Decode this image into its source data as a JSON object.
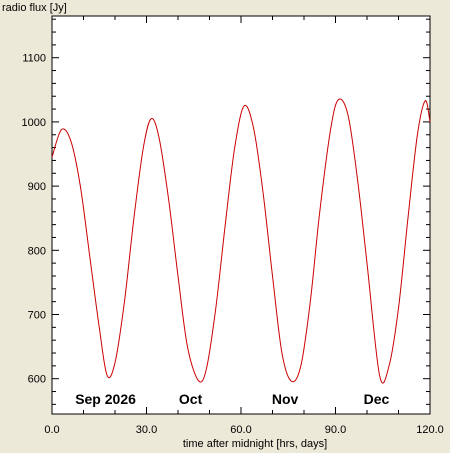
{
  "chart_data": {
    "type": "line",
    "title": "",
    "ylabel": "radio flux [Jy]",
    "xlabel": "time after midnight [hrs, days]",
    "xlim": [
      0,
      120
    ],
    "ylim": [
      545,
      1165
    ],
    "x_ticks": [
      0,
      30,
      60,
      90,
      120
    ],
    "x_tick_labels": [
      "0.0",
      "30.0",
      "60.0",
      "90.0",
      "120.0"
    ],
    "y_ticks": [
      600,
      700,
      800,
      900,
      1000,
      1100
    ],
    "y_tick_labels": [
      "600",
      "700",
      "800",
      "900",
      "1000",
      "1100"
    ],
    "grid": false,
    "legend": "none",
    "month_labels": [
      {
        "text": "Sep 2026",
        "x": 17
      },
      {
        "text": "Oct",
        "x": 44
      },
      {
        "text": "Nov",
        "x": 74
      },
      {
        "text": "Dec",
        "x": 103
      }
    ],
    "series": [
      {
        "color": "#cc0000",
        "x": [
          0,
          3,
          6,
          9,
          12,
          15,
          17.5,
          20,
          23,
          26,
          29,
          31.5,
          34,
          37,
          40,
          43,
          46.5,
          49,
          52,
          55,
          58,
          61,
          64,
          67,
          70,
          73,
          76,
          79,
          82,
          85,
          88.5,
          91,
          94,
          97,
          100,
          104,
          107,
          110,
          113,
          116,
          118.5,
          120
        ],
        "y": [
          945,
          988,
          970,
          900,
          790,
          680,
          605,
          625,
          720,
          850,
          960,
          1005,
          975,
          880,
          760,
          650,
          597,
          615,
          710,
          840,
          960,
          1025,
          990,
          890,
          760,
          640,
          596,
          620,
          720,
          860,
          990,
          1035,
          1010,
          910,
          780,
          605,
          620,
          710,
          850,
          980,
          1033,
          1000
        ]
      }
    ]
  }
}
